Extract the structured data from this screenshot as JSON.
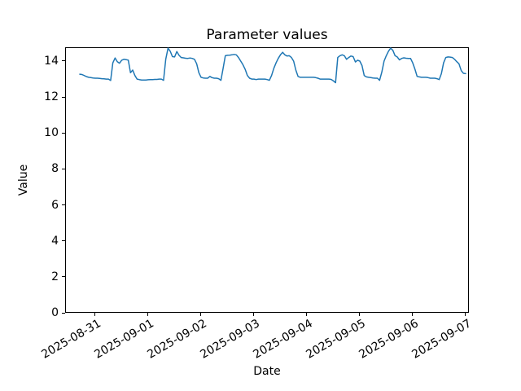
{
  "figure": {
    "title": "Parameter values",
    "xlabel": "Date",
    "ylabel": "Value"
  },
  "chart_data": {
    "type": "line",
    "title": "Parameter values",
    "xlabel": "Date",
    "ylabel": "Value",
    "grid": false,
    "legend": false,
    "background": "#ffffff",
    "line_color": "#1f77b4",
    "axis_color": "#000000",
    "ylim": [
      0,
      14.77
    ],
    "yticks": [
      0,
      2,
      4,
      6,
      8,
      10,
      12,
      14
    ],
    "x_tick_labels": [
      "2025-08-31",
      "2025-09-01",
      "2025-09-02",
      "2025-09-03",
      "2025-09-04",
      "2025-09-05",
      "2025-09-06",
      "2025-09-07"
    ],
    "x_tick_positions_days": [
      0,
      1,
      2,
      3,
      4,
      5,
      6,
      7
    ],
    "xlim_days": [
      -0.569,
      7.062
    ],
    "series": [
      {
        "x_start_day_offset": -0.2917,
        "x_step_days": 0.0416667,
        "values": [
          13.27,
          13.25,
          13.2,
          13.14,
          13.1,
          13.08,
          13.06,
          13.05,
          13.05,
          13.04,
          13.02,
          13.01,
          13.0,
          13.0,
          12.92,
          13.9,
          14.17,
          13.97,
          13.88,
          14.05,
          14.1,
          14.08,
          14.05,
          13.35,
          13.5,
          13.2,
          13.0,
          12.97,
          12.95,
          12.95,
          12.95,
          12.96,
          12.97,
          12.97,
          12.98,
          12.98,
          13.0,
          13.0,
          12.93,
          14.1,
          14.72,
          14.55,
          14.25,
          14.23,
          14.53,
          14.32,
          14.2,
          14.18,
          14.16,
          14.15,
          14.17,
          14.15,
          14.1,
          13.85,
          13.35,
          13.1,
          13.06,
          13.05,
          13.05,
          13.15,
          13.08,
          13.05,
          13.05,
          13.02,
          12.93,
          13.6,
          14.3,
          14.32,
          14.33,
          14.35,
          14.37,
          14.35,
          14.2,
          14.0,
          13.8,
          13.55,
          13.2,
          13.05,
          13.0,
          13.0,
          12.97,
          13.0,
          13.0,
          13.0,
          13.0,
          12.97,
          12.93,
          13.2,
          13.6,
          13.9,
          14.15,
          14.35,
          14.49,
          14.35,
          14.28,
          14.3,
          14.2,
          14.0,
          13.5,
          13.15,
          13.1,
          13.1,
          13.1,
          13.1,
          13.1,
          13.1,
          13.1,
          13.08,
          13.05,
          13.0,
          13.0,
          13.0,
          13.0,
          13.0,
          12.98,
          12.9,
          12.8,
          14.2,
          14.3,
          14.35,
          14.3,
          14.1,
          14.2,
          14.28,
          14.25,
          13.95,
          14.05,
          14.0,
          13.75,
          13.2,
          13.12,
          13.1,
          13.08,
          13.06,
          13.05,
          13.05,
          12.93,
          13.4,
          14.0,
          14.3,
          14.55,
          14.72,
          14.6,
          14.3,
          14.23,
          14.07,
          14.15,
          14.18,
          14.16,
          14.15,
          14.15,
          13.9,
          13.55,
          13.15,
          13.12,
          13.1,
          13.1,
          13.1,
          13.08,
          13.05,
          13.05,
          13.05,
          13.02,
          12.97,
          13.3,
          13.9,
          14.2,
          14.23,
          14.22,
          14.2,
          14.1,
          13.97,
          13.85,
          13.47,
          13.32,
          13.3
        ]
      }
    ]
  }
}
